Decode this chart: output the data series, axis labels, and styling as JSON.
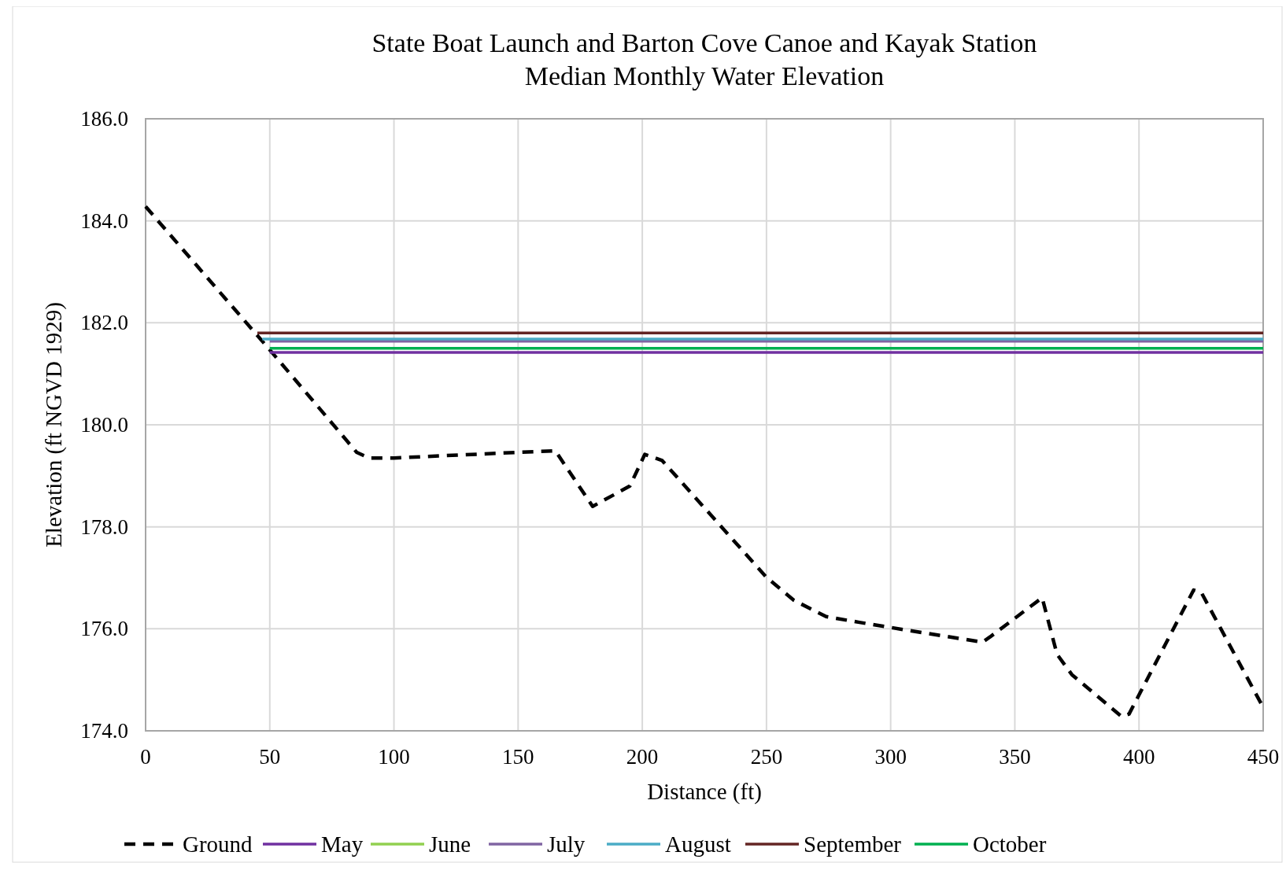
{
  "chart_data": {
    "type": "line",
    "title": "State Boat Launch and Barton Cove Canoe and Kayak Station\nMedian Monthly Water Elevation",
    "xlabel": "Distance (ft)",
    "ylabel": "Elevation (ft NGVD 1929)",
    "xlim": [
      0,
      450
    ],
    "xticks": [
      0,
      50,
      100,
      150,
      200,
      250,
      300,
      350,
      400,
      450
    ],
    "ylim": [
      174,
      186
    ],
    "yticks": [
      {
        "value": 174,
        "label": "174.0"
      },
      {
        "value": 176,
        "label": "176.0"
      },
      {
        "value": 178,
        "label": "178.0"
      },
      {
        "value": 180,
        "label": "180.0"
      },
      {
        "value": 182,
        "label": "182.0"
      },
      {
        "value": 184,
        "label": "184.0"
      },
      {
        "value": 186,
        "label": "186.0"
      }
    ],
    "grid": true,
    "legend": "bottom",
    "series": [
      {
        "name": "Ground",
        "color": "#000000",
        "line_style": "dashed",
        "x": [
          0,
          50,
          85,
          90,
          100,
          150,
          165,
          180,
          195,
          201,
          208,
          250,
          261,
          274,
          287,
          307,
          337,
          340,
          361,
          363,
          367,
          373,
          393,
          396,
          422,
          425,
          450
        ],
        "values": [
          184.28,
          181.47,
          179.46,
          179.35,
          179.35,
          179.46,
          179.49,
          178.4,
          178.8,
          179.42,
          179.3,
          177.01,
          176.56,
          176.24,
          176.13,
          175.97,
          175.74,
          175.84,
          176.61,
          176.24,
          175.5,
          175.1,
          174.28,
          174.33,
          176.76,
          176.72,
          174.46
        ]
      },
      {
        "name": "May",
        "color": "#7030a0",
        "x": [
          50,
          450
        ],
        "values": [
          181.42,
          181.42
        ]
      },
      {
        "name": "June",
        "color": "#92d050",
        "values": [
          null,
          null
        ]
      },
      {
        "name": "July",
        "color": "#8064a2",
        "x": [
          50,
          450
        ],
        "values": [
          181.64,
          181.64
        ]
      },
      {
        "name": "August",
        "color": "#4bacc6",
        "x": [
          47,
          450
        ],
        "values": [
          181.68,
          181.68
        ]
      },
      {
        "name": "September",
        "color": "#632523",
        "x": [
          45,
          450
        ],
        "values": [
          181.8,
          181.8
        ]
      },
      {
        "name": "October",
        "color": "#00b050",
        "x": [
          50,
          450
        ],
        "values": [
          181.5,
          181.5
        ]
      }
    ]
  }
}
